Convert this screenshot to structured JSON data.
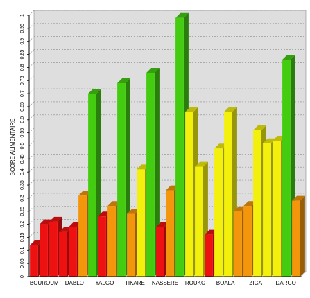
{
  "chart_data": {
    "type": "bar",
    "ylabel": "SCORE ALIMENTAIRE",
    "ylim": [
      0,
      1
    ],
    "grid": true,
    "y_ticks": [
      "0",
      "0.05",
      "0.1",
      "0.15",
      "0.2",
      "0.25",
      "0.3",
      "0.35",
      "0.4",
      "0.45",
      "0.5",
      "0.55",
      "0.6",
      "0.65",
      "0.7",
      "0.75",
      "0.8",
      "0.85",
      "0.9",
      "0.95",
      "1"
    ],
    "category_labels": [
      "BOUROUM",
      "DABLO",
      "YALGO",
      "TIKARE",
      "NASSERE",
      "ROUKO",
      "BOALA",
      "ZIGA",
      "DARGO"
    ],
    "colors": {
      "red": "#ee1111",
      "orange": "#f4960c",
      "yellow": "#f4f00e",
      "green": "#44cc11",
      "plot_background": "#dedede",
      "grid": "#8c8c8c"
    },
    "bars": [
      {
        "value": 0.12,
        "color": "red"
      },
      {
        "value": 0.2,
        "color": "red"
      },
      {
        "value": 0.21,
        "color": "red"
      },
      {
        "value": 0.17,
        "color": "red"
      },
      {
        "value": 0.19,
        "color": "red"
      },
      {
        "value": 0.31,
        "color": "orange"
      },
      {
        "value": 0.7,
        "color": "green"
      },
      {
        "value": 0.23,
        "color": "red"
      },
      {
        "value": 0.27,
        "color": "orange"
      },
      {
        "value": 0.74,
        "color": "green"
      },
      {
        "value": 0.24,
        "color": "orange"
      },
      {
        "value": 0.41,
        "color": "yellow"
      },
      {
        "value": 0.78,
        "color": "green"
      },
      {
        "value": 0.19,
        "color": "red"
      },
      {
        "value": 0.33,
        "color": "orange"
      },
      {
        "value": 0.99,
        "color": "green"
      },
      {
        "value": 0.63,
        "color": "yellow"
      },
      {
        "value": 0.42,
        "color": "yellow"
      },
      {
        "value": 0.16,
        "color": "red"
      },
      {
        "value": 0.49,
        "color": "yellow"
      },
      {
        "value": 0.63,
        "color": "yellow"
      },
      {
        "value": 0.25,
        "color": "orange"
      },
      {
        "value": 0.27,
        "color": "orange"
      },
      {
        "value": 0.56,
        "color": "yellow"
      },
      {
        "value": 0.51,
        "color": "yellow"
      },
      {
        "value": 0.52,
        "color": "yellow"
      },
      {
        "value": 0.83,
        "color": "green"
      },
      {
        "value": 0.29,
        "color": "orange"
      }
    ]
  }
}
